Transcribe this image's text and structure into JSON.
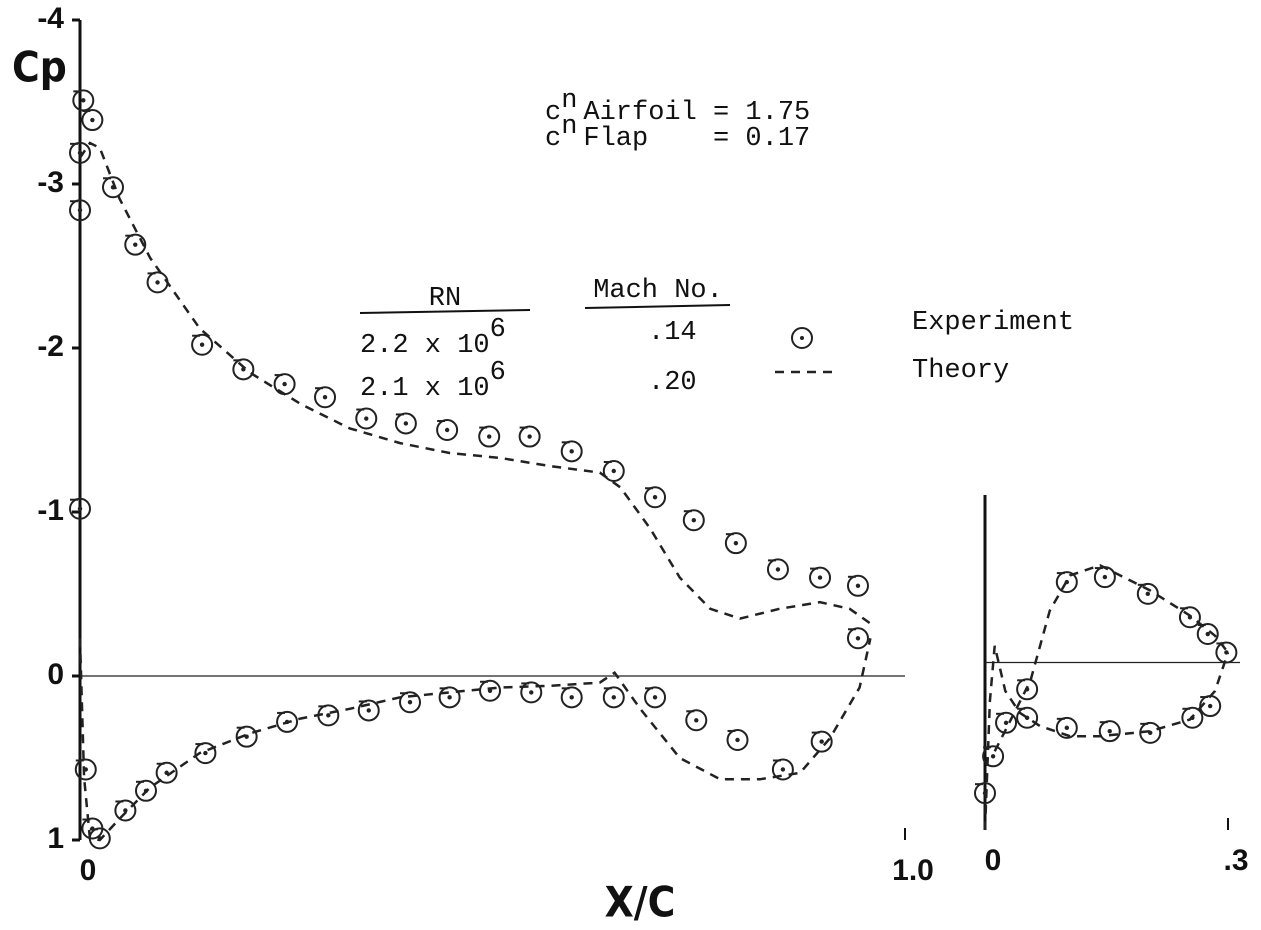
{
  "chart_data": [
    {
      "type": "scatter",
      "y_label": "Cp",
      "x_label": "X/C",
      "xlim": [
        0,
        1
      ],
      "ylim": [
        1,
        -4
      ],
      "xticks": [
        0,
        {
          "value": 1,
          "label": "1.0"
        }
      ],
      "yticks": [
        -4,
        -3,
        -2,
        -1,
        0,
        1
      ],
      "zero_line": true,
      "annotations": [
        {
          "symbol": "c",
          "subscript": "n",
          "text": "Airfoil = 1.75"
        },
        {
          "symbol": "c",
          "subscript": "n",
          "text": "Flap    = 0.17"
        }
      ],
      "legend": {
        "headers": [
          "RN",
          "Mach No."
        ],
        "rows": [
          {
            "rn": "2.2 x 10",
            "rn_exp": "6",
            "mach": ".14"
          },
          {
            "rn": "2.1 x 10",
            "rn_exp": "6",
            "mach": ".20"
          }
        ]
      },
      "series": [
        {
          "name": "Experiment",
          "color": "#222222",
          "style": "markers",
          "x": [
            0.004,
            0,
            0,
            0.015,
            0.04,
            0.067,
            0.094,
            0.148,
            0.198,
            0.248,
            0.297,
            0.347,
            0.395,
            0.445,
            0.496,
            0.545,
            0.596,
            0.647,
            0.697,
            0.744,
            0.795,
            0.846,
            0.897,
            0.943,
            0.943,
            0,
            0.007,
            0.015,
            0.024,
            0.055,
            0.08,
            0.105,
            0.152,
            0.202,
            0.251,
            0.301,
            0.35,
            0.4,
            0.448,
            0.497,
            0.547,
            0.596,
            0.647,
            0.697,
            0.747,
            0.797,
            0.852,
            0.899
          ],
          "values": [
            -3.51,
            -3.19,
            -2.84,
            -3.39,
            -2.98,
            -2.63,
            -2.4,
            -2.02,
            -1.87,
            -1.78,
            -1.7,
            -1.57,
            -1.54,
            -1.5,
            -1.46,
            -1.46,
            -1.37,
            -1.25,
            -1.09,
            -0.95,
            -0.81,
            -0.65,
            -0.6,
            -0.55,
            -0.23,
            -1.02,
            0.57,
            0.93,
            0.99,
            0.82,
            0.7,
            0.59,
            0.47,
            0.37,
            0.28,
            0.24,
            0.21,
            0.16,
            0.13,
            0.09,
            0.1,
            0.13,
            0.13,
            0.13,
            0.27,
            0.39,
            0.57,
            0.4
          ]
        },
        {
          "name": "Theory",
          "color": "#222222",
          "style": "dashed",
          "x": [
            0,
            0.012,
            0.024,
            0.048,
            0.085,
            0.145,
            0.206,
            0.267,
            0.327,
            0.388,
            0.448,
            0.509,
            0.57,
            0.63,
            0.655,
            0.691,
            0.727,
            0.764,
            0.8,
            0.848,
            0.897,
            0.933,
            0.958,
            null,
            0,
            0.005,
            0.012,
            0.024,
            0.048,
            0.085,
            0.145,
            0.206,
            0.267,
            0.327,
            0.388,
            0.448,
            0.509,
            0.57,
            0.63,
            0.648,
            0.679,
            0.727,
            0.776,
            0.824,
            0.873,
            0.909,
            0.945,
            0.958
          ],
          "values": [
            -3.16,
            -3.25,
            -3.22,
            -2.91,
            -2.55,
            -2.12,
            -1.85,
            -1.66,
            -1.51,
            -1.42,
            -1.36,
            -1.33,
            -1.28,
            -1.24,
            -1.15,
            -0.9,
            -0.6,
            -0.41,
            -0.35,
            -0.41,
            -0.45,
            -0.41,
            -0.32,
            null,
            -0.23,
            0.62,
            0.99,
            1,
            0.87,
            0.68,
            0.47,
            0.35,
            0.26,
            0.2,
            0.13,
            0.1,
            0.07,
            0.06,
            0.04,
            -0.02,
            0.2,
            0.5,
            0.63,
            0.63,
            0.59,
            0.38,
            0.07,
            -0.23
          ]
        }
      ]
    },
    {
      "type": "scatter",
      "xlim": [
        0,
        0.3
      ],
      "ylim": [
        1,
        -1
      ],
      "xticks": [
        0,
        {
          "value": 0.3,
          "label": ".3"
        }
      ],
      "zero_line": true,
      "series": [
        {
          "color": "#222222",
          "style": "markers",
          "x": [
            0,
            0.01,
            0.026,
            0.052,
            0.052,
            0.101,
            0.101,
            0.148,
            0.154,
            0.201,
            0.204,
            0.253,
            0.256,
            0.275,
            0.278,
            0.298
          ],
          "values": [
            0.78,
            0.56,
            0.36,
            0.16,
            0.33,
            -0.48,
            0.39,
            -0.51,
            0.41,
            -0.41,
            0.42,
            -0.27,
            0.33,
            -0.17,
            0.26,
            -0.06
          ]
        },
        {
          "color": "#222222",
          "style": "dashed",
          "x": [
            0,
            0.006,
            0.012,
            0.025,
            0.043,
            0.068,
            0.105,
            0.142,
            0.204,
            0.253,
            0.284,
            0.3,
            null,
            0.012,
            0.031,
            0.056,
            0.08,
            0.105,
            0.142,
            0.204,
            0.253,
            0.284,
            0.3
          ],
          "values": [
            1,
            0.23,
            -0.1,
            0.17,
            0.3,
            0.38,
            0.44,
            0.44,
            0.41,
            0.34,
            0.17,
            -0.06,
            null,
            0.53,
            0.35,
            0.11,
            -0.31,
            -0.52,
            -0.58,
            -0.43,
            -0.28,
            -0.16,
            -0.06
          ]
        }
      ]
    }
  ]
}
